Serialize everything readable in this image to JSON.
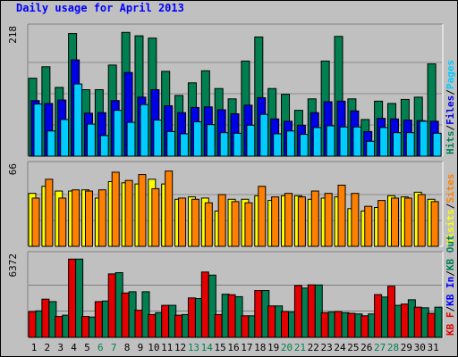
{
  "title": "Daily usage for April 2013",
  "colors": {
    "title": "#0000ff",
    "frame_bg": "#c0c0c0",
    "panel_bg": "#c0c0c0",
    "hits": "#007f51",
    "files": "#0000e6",
    "pages": "#00ccff",
    "visits": "#ffff00",
    "sites": "#ff8000",
    "kbf": "#e40000",
    "kbin": "#0000ff",
    "kbout": "#007f51"
  },
  "chart_data": [
    {
      "type": "bar",
      "name": "hits-files-pages",
      "categories": [
        "1",
        "2",
        "3",
        "4",
        "5",
        "6",
        "7",
        "8",
        "9",
        "10",
        "11",
        "12",
        "13",
        "14",
        "15",
        "16",
        "17",
        "18",
        "19",
        "20",
        "21",
        "22",
        "23",
        "24",
        "25",
        "26",
        "27",
        "28",
        "29",
        "30",
        "31"
      ],
      "max_label": "218",
      "ylim": [
        0,
        218
      ],
      "weekend_days": [
        "6",
        "7",
        "13",
        "14",
        "20",
        "21",
        "27",
        "28"
      ],
      "legend": [
        {
          "label": "Hits",
          "color": "#007f51"
        },
        {
          "label": "/",
          "color": "#000000"
        },
        {
          "label": "Files",
          "color": "#0000e6"
        },
        {
          "label": "/",
          "color": "#000000"
        },
        {
          "label": "Pages",
          "color": "#00ccff"
        }
      ],
      "series": [
        {
          "name": "Hits",
          "color": "#007f51",
          "values": [
            136,
            156,
            120,
            214,
            116,
            116,
            159,
            216,
            210,
            206,
            148,
            106,
            128,
            149,
            118,
            100,
            166,
            208,
            118,
            108,
            80,
            100,
            166,
            209,
            100,
            64,
            96,
            92,
            99,
            103,
            161
          ]
        },
        {
          "name": "Files",
          "color": "#0000e6",
          "values": [
            97,
            92,
            98,
            168,
            75,
            76,
            97,
            146,
            103,
            116,
            88,
            76,
            85,
            86,
            81,
            74,
            89,
            102,
            65,
            61,
            54,
            76,
            95,
            96,
            79,
            43,
            66,
            65,
            63,
            62,
            61
          ]
        },
        {
          "name": "Pages",
          "color": "#00ccff",
          "values": [
            91,
            44,
            64,
            126,
            56,
            36,
            80,
            59,
            90,
            63,
            43,
            39,
            60,
            55,
            41,
            40,
            54,
            73,
            39,
            44,
            38,
            50,
            53,
            51,
            51,
            26,
            50,
            41,
            41,
            61,
            40
          ]
        }
      ]
    },
    {
      "type": "bar",
      "name": "visits-sites",
      "categories": [
        "1",
        "2",
        "3",
        "4",
        "5",
        "6",
        "7",
        "8",
        "9",
        "10",
        "11",
        "12",
        "13",
        "14",
        "15",
        "16",
        "17",
        "18",
        "19",
        "20",
        "21",
        "22",
        "23",
        "24",
        "25",
        "26",
        "27",
        "28",
        "29",
        "30",
        "31"
      ],
      "max_label": "66",
      "ylim": [
        0,
        66
      ],
      "legend": [
        {
          "label": "Visits",
          "color": "#ffff00"
        },
        {
          "label": "/",
          "color": "#000000"
        },
        {
          "label": "Sites",
          "color": "#ff8000"
        }
      ],
      "series": [
        {
          "name": "Visits",
          "color": "#ffff00",
          "values": [
            45,
            51,
            47,
            47,
            48,
            41,
            55,
            54,
            53,
            57,
            53,
            40,
            42,
            41,
            30,
            40,
            40,
            43,
            39,
            43,
            43,
            40,
            41,
            42,
            32,
            30,
            33,
            43,
            42,
            46,
            40
          ]
        },
        {
          "name": "Sites",
          "color": "#ff8000",
          "values": [
            41,
            57,
            41,
            48,
            47,
            48,
            63,
            56,
            61,
            49,
            64,
            41,
            40,
            37,
            44,
            38,
            37,
            51,
            42,
            45,
            42,
            47,
            45,
            52,
            45,
            34,
            39,
            41,
            41,
            44,
            38
          ]
        }
      ]
    },
    {
      "type": "bar",
      "name": "kbytes",
      "categories": [
        "1",
        "2",
        "3",
        "4",
        "5",
        "6",
        "7",
        "8",
        "9",
        "10",
        "11",
        "12",
        "13",
        "14",
        "15",
        "16",
        "17",
        "18",
        "19",
        "20",
        "21",
        "22",
        "23",
        "24",
        "25",
        "26",
        "27",
        "28",
        "29",
        "30",
        "31"
      ],
      "max_label": "6372",
      "ylim": [
        0,
        6372
      ],
      "legend": [
        {
          "label": "KB F",
          "color": "#e40000"
        },
        {
          "label": "/",
          "color": "#000000"
        },
        {
          "label": "KB In",
          "color": "#0000ff"
        },
        {
          "label": "/",
          "color": "#000000"
        },
        {
          "label": "KB Out",
          "color": "#007f51"
        }
      ],
      "series": [
        {
          "name": "KB F",
          "color": "#e40000",
          "values": [
            2100,
            3100,
            1700,
            6350,
            1700,
            2900,
            5150,
            3600,
            2200,
            1850,
            2600,
            1800,
            3200,
            5300,
            1850,
            3460,
            1750,
            3800,
            2550,
            2100,
            4200,
            4260,
            2000,
            2100,
            1950,
            1750,
            3470,
            4150,
            2700,
            2450,
            1950
          ]
        },
        {
          "name": "KB In",
          "color": "#0000ff",
          "values": [
            0,
            0,
            0,
            0,
            0,
            0,
            0,
            0,
            0,
            0,
            0,
            0,
            0,
            0,
            0,
            0,
            0,
            0,
            0,
            0,
            0,
            0,
            0,
            0,
            0,
            0,
            0,
            0,
            0,
            0,
            0
          ]
        },
        {
          "name": "KB Out",
          "color": "#007f51",
          "values": [
            2150,
            2900,
            1800,
            6350,
            1650,
            2950,
            5250,
            3700,
            3700,
            2000,
            2600,
            1850,
            3150,
            5050,
            3500,
            3300,
            1750,
            3800,
            2550,
            2050,
            4000,
            4250,
            2050,
            2000,
            1900,
            1900,
            3270,
            2600,
            3050,
            2400,
            2450
          ]
        }
      ]
    }
  ]
}
